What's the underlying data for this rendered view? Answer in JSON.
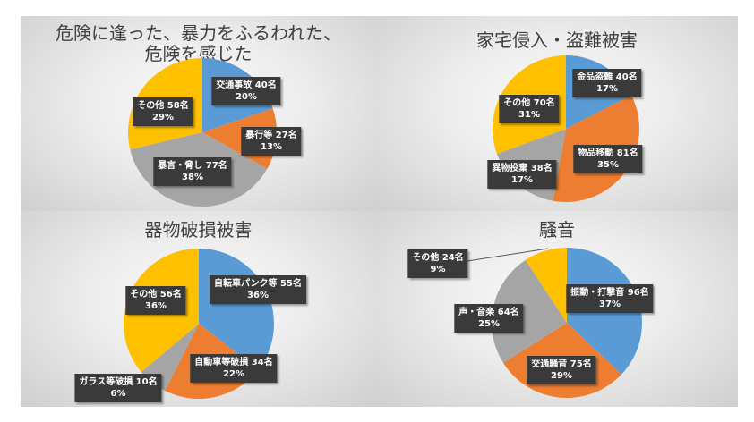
{
  "colors": {
    "blue": "#5b9bd5",
    "orange": "#ed7d31",
    "gray": "#a5a5a5",
    "yellow": "#ffc000",
    "label_bg": "#3a3a3a"
  },
  "chart_data": [
    {
      "type": "pie",
      "title": "危険に逢った、暴力をふるわれた、危険を感じた",
      "title_lines": [
        "危険に逢った、暴力をふるわれた、",
        "危険を感じた"
      ],
      "categories": [
        "交通事故",
        "暴行等",
        "暴言・脅し",
        "その他"
      ],
      "values": [
        40,
        27,
        77,
        58
      ],
      "unit": "名",
      "percentages": [
        20,
        13,
        38,
        29
      ],
      "colors": [
        "#5b9bd5",
        "#ed7d31",
        "#a5a5a5",
        "#ffc000"
      ],
      "labels": [
        {
          "line1": "交通事故 40名",
          "line2": "20%"
        },
        {
          "line1": "暴行等 27名",
          "line2": "13%"
        },
        {
          "line1": "暴言・脅し 77名",
          "line2": "38%"
        },
        {
          "line1": "その他 58名",
          "line2": "29%"
        }
      ]
    },
    {
      "type": "pie",
      "title": "家宅侵入・盗難被害",
      "categories": [
        "金品盗難",
        "物品移動",
        "異物投棄",
        "その他"
      ],
      "values": [
        40,
        81,
        38,
        70
      ],
      "unit": "名",
      "percentages": [
        17,
        35,
        17,
        31
      ],
      "colors": [
        "#5b9bd5",
        "#ed7d31",
        "#a5a5a5",
        "#ffc000"
      ],
      "labels": [
        {
          "line1": "金品盗難 40名",
          "line2": "17%"
        },
        {
          "line1": "物品移動 81名",
          "line2": "35%"
        },
        {
          "line1": "異物投棄 38名",
          "line2": "17%"
        },
        {
          "line1": "その他 70名",
          "line2": "31%"
        }
      ]
    },
    {
      "type": "pie",
      "title": "器物破損被害",
      "categories": [
        "自転車パンク等",
        "自動車等破損",
        "ガラス等破損",
        "その他"
      ],
      "values": [
        55,
        34,
        10,
        56
      ],
      "unit": "名",
      "percentages": [
        36,
        22,
        6,
        36
      ],
      "colors": [
        "#5b9bd5",
        "#ed7d31",
        "#a5a5a5",
        "#ffc000"
      ],
      "labels": [
        {
          "line1": "自転車パンク等 55名",
          "line2": "36%"
        },
        {
          "line1": "自動車等破損 34名",
          "line2": "22%"
        },
        {
          "line1": "ガラス等破損 10名",
          "line2": "6%"
        },
        {
          "line1": "その他 56名",
          "line2": "36%"
        }
      ]
    },
    {
      "type": "pie",
      "title": "騒音",
      "categories": [
        "振動・打撃音",
        "交通騒音",
        "声・音楽",
        "その他"
      ],
      "values": [
        96,
        75,
        64,
        24
      ],
      "unit": "名",
      "percentages": [
        37,
        29,
        25,
        9
      ],
      "colors": [
        "#5b9bd5",
        "#ed7d31",
        "#a5a5a5",
        "#ffc000"
      ],
      "labels": [
        {
          "line1": "振動・打撃音 96名",
          "line2": "37%"
        },
        {
          "line1": "交通騒音 75名",
          "line2": "29%"
        },
        {
          "line1": "声・音楽 64名",
          "line2": "25%"
        },
        {
          "line1": "その他 24名",
          "line2": "9%"
        }
      ]
    }
  ]
}
